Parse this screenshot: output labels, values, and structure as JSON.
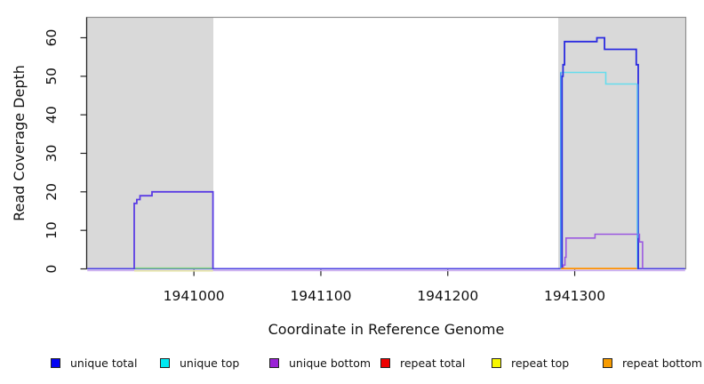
{
  "chart_data": {
    "type": "line",
    "title": "",
    "xlabel": "Coordinate in Reference Genome",
    "ylabel": "Read Coverage Depth",
    "xlim": [
      1940915.5,
      1941387.5
    ],
    "ylim": [
      0,
      65.3
    ],
    "x_ticks": [
      1941000,
      1941100,
      1941200,
      1941300
    ],
    "y_ticks": [
      0,
      10,
      20,
      30,
      40,
      50,
      60
    ],
    "grid": false,
    "legend_position": "bottom",
    "plot_border_color": "#8f8f8f",
    "axis_color": "#222222",
    "shaded_regions": [
      {
        "name": "shaded-region-left",
        "x0": 1940915.5,
        "x1": 1941015.3,
        "color": "#d9d9d9"
      },
      {
        "name": "shaded-region-right",
        "x0": 1941287.0,
        "x1": 1941387.5,
        "color": "#d9d9d9"
      }
    ],
    "overlay_lines": [
      {
        "name": "baseline-underline-lavender",
        "color": "#c9a8f0",
        "width": 1.3,
        "points": [
          [
            1940916,
            -0.45
          ],
          [
            1941387,
            -0.45
          ]
        ]
      },
      {
        "name": "baseline-underline-cream-left",
        "color": "#e3e1a0",
        "width": 1.5,
        "points": [
          [
            1940953,
            -0.5
          ],
          [
            1941015,
            -0.5
          ]
        ]
      },
      {
        "name": "baseline-violet",
        "color": "#4b3fe2",
        "width": 1.7,
        "points": [
          [
            1940916,
            0.05
          ],
          [
            1941387,
            0.05
          ]
        ]
      },
      {
        "name": "baseline-green-left",
        "color": "#82d682",
        "width": 1.6,
        "points": [
          [
            1940953,
            0.18
          ],
          [
            1941015,
            0.18
          ]
        ]
      }
    ],
    "series": [
      {
        "name": "unique-total-left",
        "legend": "unique total",
        "color": "#5a3ce4",
        "width": 1.8,
        "points": [
          [
            1940953,
            0
          ],
          [
            1940953,
            17
          ],
          [
            1940955,
            17
          ],
          [
            1940955,
            18
          ],
          [
            1940957.5,
            18
          ],
          [
            1940957.5,
            19
          ],
          [
            1940967,
            19
          ],
          [
            1940967,
            20
          ],
          [
            1941015,
            20
          ],
          [
            1941015,
            0
          ]
        ]
      },
      {
        "name": "unique-top-right",
        "legend": "unique top",
        "color": "#66dded",
        "width": 1.6,
        "points": [
          [
            1941289,
            0
          ],
          [
            1941289,
            51
          ],
          [
            1941324.5,
            51
          ],
          [
            1941324.5,
            48
          ],
          [
            1941349.3,
            48
          ],
          [
            1941349.3,
            0
          ]
        ]
      },
      {
        "name": "unique-total-right",
        "legend": "unique total",
        "color": "#2b2be0",
        "width": 1.8,
        "points": [
          [
            1941290,
            0
          ],
          [
            1941290,
            50
          ],
          [
            1941290.8,
            50
          ],
          [
            1941290.8,
            53
          ],
          [
            1941292,
            53
          ],
          [
            1941292,
            59
          ],
          [
            1941317.5,
            59
          ],
          [
            1941317.5,
            60
          ],
          [
            1941323.5,
            60
          ],
          [
            1941323.5,
            57
          ],
          [
            1941348.5,
            57
          ],
          [
            1941348.5,
            53
          ],
          [
            1941350,
            53
          ],
          [
            1941350,
            0
          ]
        ]
      },
      {
        "name": "unique-bottom-right",
        "legend": "unique bottom",
        "color": "#9b59e0",
        "width": 1.6,
        "points": [
          [
            1941291,
            0
          ],
          [
            1941291,
            1
          ],
          [
            1941292.3,
            1
          ],
          [
            1941292.3,
            3
          ],
          [
            1941293.2,
            3
          ],
          [
            1941293.2,
            8
          ],
          [
            1941316,
            8
          ],
          [
            1941316,
            9
          ],
          [
            1941351,
            9
          ],
          [
            1941351,
            7
          ],
          [
            1941353.5,
            7
          ],
          [
            1941353.5,
            0
          ]
        ]
      },
      {
        "name": "repeat-bottom-right",
        "legend": "repeat bottom",
        "color": "#ff9100",
        "width": 1.8,
        "points": [
          [
            1941289,
            0.1
          ],
          [
            1941349,
            0.1
          ]
        ]
      }
    ],
    "overlay_lines_front": [
      {
        "name": "edge-highlight-rise",
        "color": "#4e97ef",
        "width": 1.6,
        "points": [
          [
            1941289,
            0.1
          ],
          [
            1941289,
            51
          ]
        ]
      },
      {
        "name": "edge-highlight-fall",
        "color": "#4e97ef",
        "width": 1.6,
        "points": [
          [
            1941349.7,
            8
          ],
          [
            1941349.7,
            48
          ]
        ]
      }
    ],
    "legend": [
      {
        "label": "unique total",
        "fill": "#0202f2"
      },
      {
        "label": "unique top",
        "fill": "#00e9f2"
      },
      {
        "label": "unique bottom",
        "fill": "#9a22d6"
      },
      {
        "label": "repeat total",
        "fill": "#ee0000"
      },
      {
        "label": "repeat top",
        "fill": "#f7f700"
      },
      {
        "label": "repeat bottom",
        "fill": "#f79b00"
      }
    ]
  }
}
